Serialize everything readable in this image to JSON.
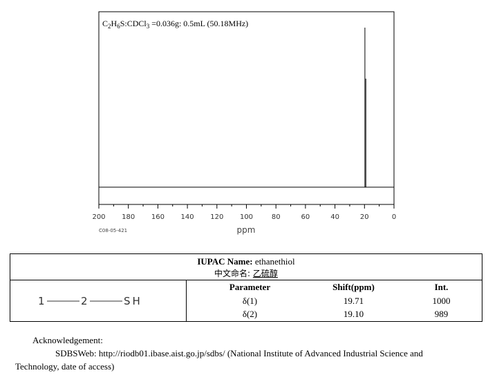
{
  "chart_data": {
    "type": "nmr-spectrum",
    "title_parts": [
      "C",
      "2",
      "H",
      "6",
      "S:CDCl",
      "3",
      " =0.036g: 0.5mL (50.18MHz)"
    ],
    "xlabel": "ppm",
    "xlim": [
      200,
      0
    ],
    "x_ticks": [
      200,
      180,
      160,
      140,
      120,
      100,
      80,
      60,
      40,
      20,
      0
    ],
    "x_tick_labels": [
      "200",
      "180",
      "160",
      "140",
      "120",
      "100",
      "80",
      "60",
      "40",
      "20",
      "0"
    ],
    "code": "C08-05-421",
    "peaks": [
      {
        "shift": 19.71,
        "intensity": 1000
      },
      {
        "shift": 19.1,
        "intensity": 989
      }
    ]
  },
  "iupac": {
    "label": "IUPAC Name:",
    "name": "ethanethiol"
  },
  "chinese": {
    "label": "中文命名:",
    "name": "乙硫醇"
  },
  "structure": {
    "atom1": "1",
    "atom2": "2",
    "group": "SH"
  },
  "table": {
    "headers": [
      "Parameter",
      "Shift(ppm)",
      "Int."
    ],
    "rows": [
      [
        "δ(1)",
        "19.71",
        "1000"
      ],
      [
        "δ(2)",
        "19.10",
        "989"
      ]
    ]
  },
  "acknowledgement": {
    "heading": "Acknowledgement:",
    "line1": "SDBSWeb: http://riodb01.ibase.aist.go.jp/sdbs/ (National Institute of Advanced Industrial Science and",
    "line2": "Technology, date of access)"
  }
}
